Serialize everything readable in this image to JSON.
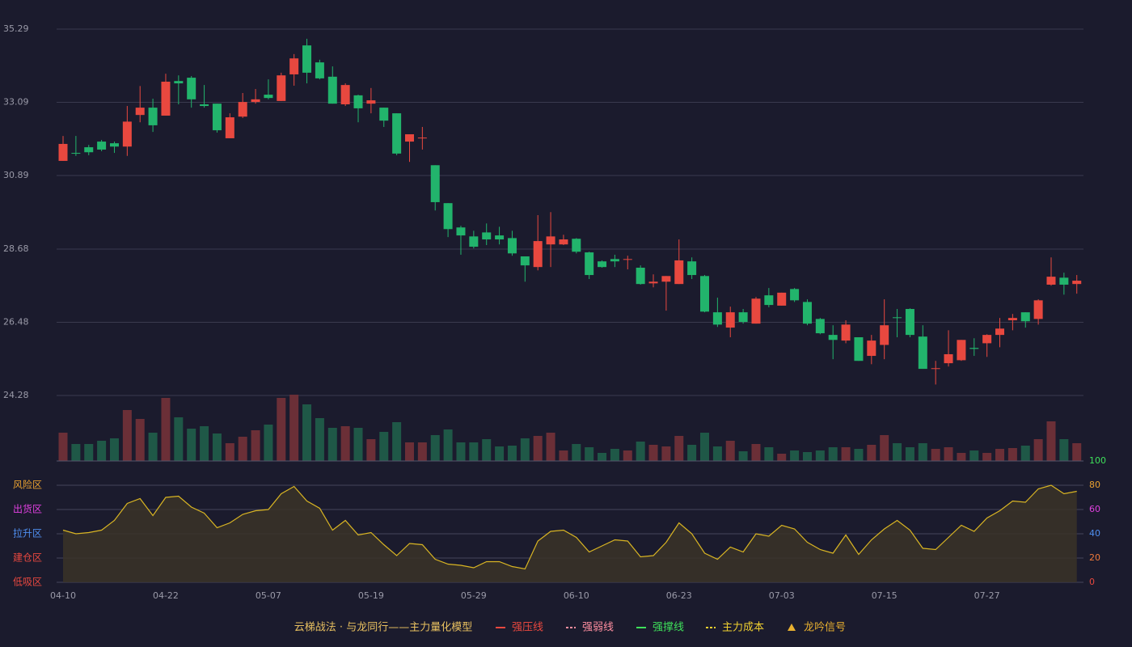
{
  "chart_data": [
    {
      "type": "candlestick",
      "categories": [
        "04-10",
        null,
        null,
        null,
        null,
        null,
        null,
        null,
        "04-22",
        null,
        null,
        null,
        null,
        null,
        null,
        null,
        "05-07",
        null,
        null,
        null,
        null,
        null,
        null,
        null,
        "05-19",
        null,
        null,
        null,
        null,
        null,
        null,
        null,
        "05-29",
        null,
        null,
        null,
        null,
        null,
        null,
        null,
        "06-10",
        null,
        null,
        null,
        null,
        null,
        null,
        null,
        "06-23",
        null,
        null,
        null,
        null,
        null,
        null,
        null,
        "07-03",
        null,
        null,
        null,
        null,
        null,
        null,
        null,
        "07-15",
        null,
        null,
        null,
        null,
        null,
        null,
        null,
        "07-27",
        null,
        null,
        null,
        null,
        null,
        null,
        null
      ],
      "open": [
        31.33,
        31.57,
        31.74,
        31.91,
        31.86,
        31.76,
        32.71,
        32.93,
        32.69,
        33.73,
        33.83,
        33.03,
        33.05,
        32.01,
        32.66,
        33.1,
        33.32,
        33.13,
        33.93,
        34.8,
        34.29,
        33.86,
        33.03,
        33.3,
        33.05,
        32.93,
        32.76,
        31.91,
        32.01,
        31.2,
        30.06,
        29.33,
        29.06,
        29.18,
        29.09,
        29.01,
        28.46,
        28.14,
        28.82,
        28.82,
        28.99,
        28.58,
        28.31,
        28.38,
        28.36,
        28.12,
        27.65,
        27.7,
        27.63,
        28.31,
        27.87,
        26.78,
        26.32,
        26.78,
        26.44,
        27.29,
        26.98,
        27.48,
        27.09,
        26.58,
        26.1,
        25.93,
        26.03,
        25.47,
        25.8,
        26.63,
        26.88,
        26.05,
        25.08,
        25.25,
        25.34,
        25.71,
        25.85,
        26.1,
        26.54,
        26.78,
        26.58,
        27.61,
        27.82,
        27.63
      ],
      "high": [
        32.08,
        32.08,
        31.81,
        31.96,
        31.91,
        32.98,
        33.58,
        33.2,
        33.95,
        33.9,
        33.88,
        33.61,
        33.05,
        32.76,
        33.37,
        33.49,
        33.78,
        33.98,
        34.54,
        35.0,
        34.37,
        34.17,
        33.66,
        33.32,
        33.52,
        32.93,
        32.76,
        32.13,
        32.35,
        31.2,
        30.06,
        29.38,
        29.23,
        29.45,
        29.35,
        29.23,
        28.46,
        29.7,
        29.79,
        29.11,
        29.01,
        28.6,
        28.34,
        28.51,
        28.48,
        28.19,
        27.92,
        27.87,
        28.97,
        28.43,
        27.9,
        27.22,
        26.95,
        26.88,
        27.24,
        27.51,
        27.37,
        27.51,
        27.17,
        26.61,
        26.39,
        26.54,
        26.03,
        26.1,
        27.17,
        26.88,
        26.9,
        26.39,
        25.32,
        26.24,
        25.95,
        26.0,
        26.12,
        26.61,
        26.73,
        26.78,
        27.17,
        28.43,
        27.97,
        27.9
      ],
      "low": [
        31.33,
        31.48,
        31.5,
        31.62,
        31.57,
        31.48,
        32.49,
        32.2,
        32.69,
        33.03,
        32.93,
        32.93,
        32.18,
        32.01,
        32.62,
        33.05,
        33.18,
        33.13,
        33.59,
        33.66,
        33.78,
        33.05,
        32.98,
        32.49,
        32.76,
        32.35,
        31.5,
        31.3,
        31.67,
        29.84,
        29.04,
        28.51,
        28.7,
        28.8,
        28.82,
        28.48,
        27.7,
        28.04,
        28.14,
        28.8,
        28.55,
        27.78,
        28.12,
        28.14,
        28.07,
        27.61,
        27.53,
        26.83,
        27.63,
        27.78,
        26.78,
        26.34,
        26.03,
        26.44,
        26.44,
        26.93,
        26.98,
        27.09,
        26.39,
        26.12,
        25.37,
        25.85,
        25.32,
        25.22,
        25.37,
        26.03,
        26.03,
        25.08,
        24.61,
        25.15,
        25.32,
        25.47,
        25.44,
        25.73,
        26.24,
        26.32,
        26.41,
        27.58,
        27.31,
        27.34
      ],
      "close": [
        31.84,
        31.55,
        31.59,
        31.67,
        31.76,
        32.51,
        32.93,
        32.4,
        33.71,
        33.66,
        33.18,
        32.98,
        32.25,
        32.64,
        33.1,
        33.18,
        33.22,
        33.9,
        34.41,
        33.98,
        33.81,
        33.05,
        33.61,
        32.91,
        33.15,
        32.54,
        31.55,
        32.13,
        32.03,
        30.09,
        29.28,
        29.09,
        28.75,
        28.97,
        28.97,
        28.55,
        28.19,
        28.92,
        29.06,
        28.97,
        28.6,
        27.9,
        28.14,
        28.31,
        28.38,
        27.63,
        27.7,
        27.87,
        28.34,
        27.9,
        26.8,
        26.41,
        26.78,
        26.49,
        27.19,
        27.0,
        27.37,
        27.14,
        26.44,
        26.15,
        25.95,
        26.41,
        25.32,
        25.93,
        26.39,
        26.61,
        26.1,
        25.08,
        25.1,
        25.52,
        25.95,
        25.68,
        26.1,
        26.29,
        26.61,
        26.51,
        27.14,
        27.85,
        27.61,
        27.73
      ],
      "up_color": "#e8483f",
      "down_color": "#22b46c",
      "ylim": [
        24.28,
        35.29
      ],
      "yticks": [
        {
          "value": 24.28,
          "label": "24.28"
        },
        {
          "value": 26.48,
          "label": "26.48"
        },
        {
          "value": 28.68,
          "label": "28.68"
        },
        {
          "value": 30.89,
          "label": "30.89"
        },
        {
          "value": 33.09,
          "label": "33.09"
        },
        {
          "value": 35.29,
          "label": "35.29"
        }
      ],
      "grid": true
    },
    {
      "type": "bar",
      "values": [
        35,
        21,
        21,
        25,
        28,
        63,
        52,
        35,
        78,
        54,
        40,
        43,
        34,
        22,
        30,
        38,
        45,
        78,
        82,
        70,
        53,
        41,
        43,
        41,
        27,
        36,
        48,
        23,
        23,
        32,
        39,
        23,
        23,
        27,
        18,
        19,
        28,
        31,
        35,
        13,
        21,
        17,
        10,
        15,
        13,
        24,
        20,
        18,
        31,
        20,
        35,
        18,
        25,
        12,
        21,
        17,
        9,
        13,
        11,
        13,
        17,
        17,
        15,
        20,
        32,
        22,
        17,
        22,
        15,
        17,
        10,
        13,
        10,
        15,
        16,
        19,
        27,
        49,
        27,
        22
      ],
      "up_color": "#6b2f37",
      "down_color": "#1f5847",
      "ylim": [
        0,
        82
      ]
    },
    {
      "type": "line",
      "values": [
        43,
        40,
        41,
        43,
        51,
        65,
        69,
        55,
        70,
        71,
        62,
        57,
        45,
        49,
        56,
        59,
        60,
        73,
        79,
        67,
        61,
        43,
        51,
        39,
        41,
        31,
        22,
        32,
        31,
        19,
        15,
        14,
        12,
        17,
        17,
        13,
        11,
        34,
        42,
        43,
        37,
        25,
        30,
        35,
        34,
        21,
        22,
        33,
        49,
        40,
        24,
        19,
        29,
        25,
        40,
        38,
        47,
        44,
        33,
        27,
        24,
        39,
        23,
        35,
        44,
        51,
        43,
        28,
        27,
        37,
        47,
        42,
        53,
        59,
        67,
        66,
        77,
        80,
        73,
        75
      ],
      "color": "#d9b523",
      "ylim": [
        0,
        100
      ],
      "yticks": [
        {
          "value": 0,
          "color": "#e8483f"
        },
        {
          "value": 20,
          "color": "#f07a3a"
        },
        {
          "value": 40,
          "color": "#4f8ff0"
        },
        {
          "value": 60,
          "color": "#e040e0"
        },
        {
          "value": 80,
          "color": "#e8a030"
        },
        {
          "value": 100,
          "color": "#3ee05a"
        }
      ],
      "zones": [
        {
          "label": "风险区",
          "value": 80,
          "color": "#e8a030"
        },
        {
          "label": "出货区",
          "value": 60,
          "color": "#e040e0"
        },
        {
          "label": "拉升区",
          "value": 40,
          "color": "#4f8ff0"
        },
        {
          "label": "建仓区",
          "value": 20,
          "color": "#e8483f"
        },
        {
          "label": "低吸区",
          "value": 0,
          "color": "#e8483f"
        }
      ],
      "grid": true
    }
  ],
  "legend": {
    "title": "云梯战法 · 与龙同行——主力量化模型",
    "items": [
      {
        "name": "强压线",
        "color": "#e8483f",
        "style": "solid"
      },
      {
        "name": "强弱线",
        "color": "#ff8fa0",
        "style": "dashed"
      },
      {
        "name": "强撑线",
        "color": "#3ee05a",
        "style": "solid"
      },
      {
        "name": "主力成本",
        "color": "#f0d030",
        "style": "dashed"
      },
      {
        "name": "龙吟信号",
        "color": "#e8b030",
        "style": "triangle"
      }
    ]
  }
}
